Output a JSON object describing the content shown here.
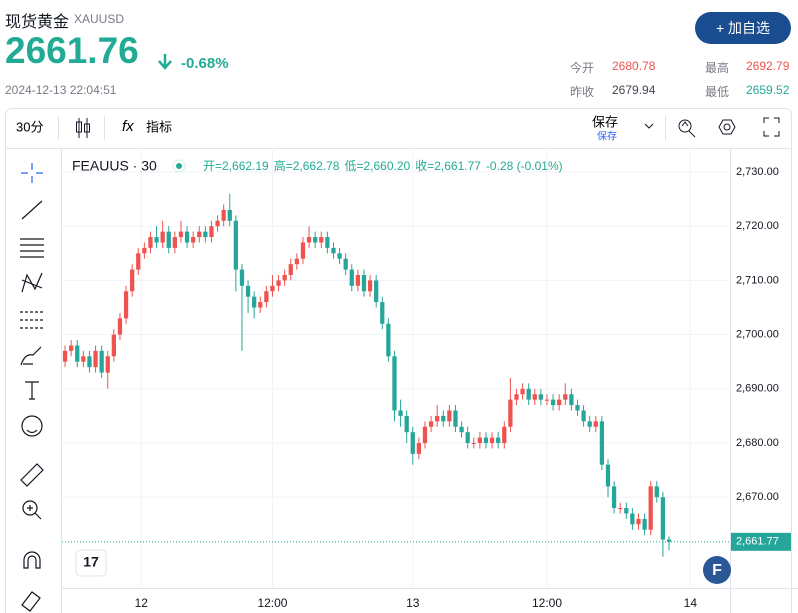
{
  "header": {
    "name": "现货黄金",
    "symbol": "XAUUSD",
    "price": "2661.76",
    "change": "-0.68%",
    "time": "2024-12-13 22:04:51",
    "button": "+ 加自选"
  },
  "stats": [
    {
      "label": "今开",
      "value": "2680.78"
    },
    {
      "label": "最高",
      "value": "2692.79"
    },
    {
      "label": "昨收",
      "value": "2679.94"
    },
    {
      "label": "最低",
      "value": "2659.52"
    }
  ],
  "toolbar": {
    "interval": "30分",
    "indicators": "指标",
    "save": "保存",
    "save_sub": "保存"
  },
  "chart_data": {
    "type": "candlestick",
    "legend_title": "FEAUUS · 30",
    "legend_values": [
      "开=2,662.19",
      "高=2,662.78",
      "低=2,660.20",
      "收=2,661.77",
      "-0.28 (-0.01%)"
    ],
    "open": [
      2695,
      2697,
      2698,
      2695,
      2696,
      2694,
      2697,
      2693,
      2696,
      2700,
      2703,
      2708,
      2712,
      2715,
      2716,
      2718,
      2717,
      2719,
      2716,
      2718,
      2719,
      2717,
      2718,
      2719,
      2718,
      2720,
      2721,
      2723,
      2721,
      2712,
      2709,
      2707,
      2705,
      2706,
      2708,
      2709,
      2710,
      2711,
      2713,
      2714,
      2717,
      2718,
      2717,
      2718,
      2716,
      2715,
      2714,
      2712,
      2709,
      2711,
      2708,
      2710,
      2706,
      2702,
      2696,
      2686,
      2685,
      2682,
      2678,
      2680,
      2683,
      2684,
      2685,
      2684,
      2686,
      2683,
      2682,
      2680,
      2680,
      2681,
      2680,
      2681,
      2680,
      2683,
      2688,
      2689,
      2690,
      2688,
      2689,
      2688,
      2688,
      2687,
      2688,
      2689,
      2687,
      2686,
      2684,
      2683,
      2684,
      2676,
      2672,
      2668,
      2668,
      2667,
      2665,
      2666,
      2664,
      2672,
      2670,
      2662.19
    ],
    "high": [
      2698,
      2699,
      2699,
      2697,
      2697,
      2698,
      2698,
      2697,
      2701,
      2704,
      2709,
      2713,
      2716,
      2717,
      2719,
      2720,
      2721,
      2720,
      2719,
      2721,
      2720,
      2719,
      2720,
      2720,
      2721,
      2722,
      2724,
      2726,
      2722,
      2713,
      2710,
      2708,
      2707,
      2709,
      2711,
      2711,
      2712,
      2714,
      2715,
      2718,
      2720,
      2719,
      2719,
      2719,
      2717,
      2716,
      2715,
      2713,
      2712,
      2712,
      2711,
      2711,
      2707,
      2703,
      2697,
      2688,
      2686,
      2683,
      2681,
      2684,
      2685,
      2687,
      2686,
      2687,
      2687,
      2684,
      2683,
      2681,
      2682,
      2682,
      2682,
      2682,
      2684,
      2692,
      2690,
      2691,
      2691,
      2690,
      2690,
      2689,
      2689,
      2689,
      2691,
      2690,
      2688,
      2687,
      2685,
      2685,
      2685,
      2677,
      2673,
      2669,
      2669,
      2668,
      2667,
      2667,
      2673,
      2673,
      2671,
      2662.78
    ],
    "low": [
      2694,
      2696,
      2694,
      2694,
      2693,
      2693,
      2692,
      2690,
      2695,
      2699,
      2702,
      2707,
      2711,
      2714,
      2715,
      2716,
      2716,
      2715,
      2715,
      2717,
      2716,
      2716,
      2717,
      2717,
      2717,
      2719,
      2720,
      2720,
      2708,
      2697,
      2704,
      2703,
      2704,
      2705,
      2707,
      2708,
      2709,
      2710,
      2712,
      2713,
      2716,
      2716,
      2716,
      2715,
      2714,
      2713,
      2711,
      2708,
      2708,
      2707,
      2707,
      2705,
      2701,
      2695,
      2684,
      2683,
      2680,
      2676,
      2677,
      2679,
      2682,
      2683,
      2683,
      2683,
      2682,
      2681,
      2679,
      2679,
      2679,
      2679,
      2679,
      2679,
      2679,
      2682,
      2687,
      2688,
      2687,
      2687,
      2687,
      2687,
      2686,
      2686,
      2687,
      2686,
      2685,
      2683,
      2682,
      2682,
      2675,
      2670,
      2667,
      2667,
      2666,
      2664,
      2664,
      2663,
      2663,
      2669,
      2659,
      2660.2
    ],
    "close": [
      2697,
      2698,
      2695,
      2696,
      2694,
      2697,
      2693,
      2696,
      2700,
      2703,
      2708,
      2712,
      2715,
      2716,
      2718,
      2717,
      2719,
      2716,
      2718,
      2719,
      2717,
      2718,
      2719,
      2718,
      2720,
      2721,
      2723,
      2721,
      2712,
      2709,
      2707,
      2705,
      2706,
      2708,
      2709,
      2710,
      2711,
      2713,
      2714,
      2717,
      2718,
      2717,
      2718,
      2716,
      2715,
      2714,
      2712,
      2709,
      2711,
      2708,
      2710,
      2706,
      2702,
      2696,
      2686,
      2685,
      2682,
      2678,
      2680,
      2683,
      2684,
      2685,
      2684,
      2686,
      2683,
      2682,
      2680,
      2680,
      2681,
      2680,
      2681,
      2680,
      2683,
      2688,
      2689,
      2690,
      2688,
      2689,
      2688,
      2688,
      2687,
      2688,
      2689,
      2687,
      2686,
      2684,
      2683,
      2684,
      2676,
      2672,
      2668,
      2668,
      2667,
      2665,
      2666,
      2664,
      2672,
      2670,
      2662.19,
      2661.77
    ],
    "up_color": "#ef5350",
    "down_color": "#26a69a",
    "xlim": [
      -0.5,
      109
    ],
    "xticks": [
      {
        "value": 12.5,
        "label": "12"
      },
      {
        "value": 34,
        "label": "12:00"
      },
      {
        "value": 57,
        "label": "13"
      },
      {
        "value": 79,
        "label": "12:00"
      },
      {
        "value": 102.5,
        "label": "14"
      }
    ],
    "ylim": [
      2653.25,
      2734.43
    ],
    "yticks": [
      {
        "value": 2670,
        "label": "2,670.00"
      },
      {
        "value": 2680,
        "label": "2,680.00"
      },
      {
        "value": 2690,
        "label": "2,690.00"
      },
      {
        "value": 2700,
        "label": "2,700.00"
      },
      {
        "value": 2710,
        "label": "2,710.00"
      },
      {
        "value": 2720,
        "label": "2,720.00"
      },
      {
        "value": 2730,
        "label": "2,730.00"
      }
    ],
    "last_price_label": "2,661.77",
    "grid": true
  }
}
